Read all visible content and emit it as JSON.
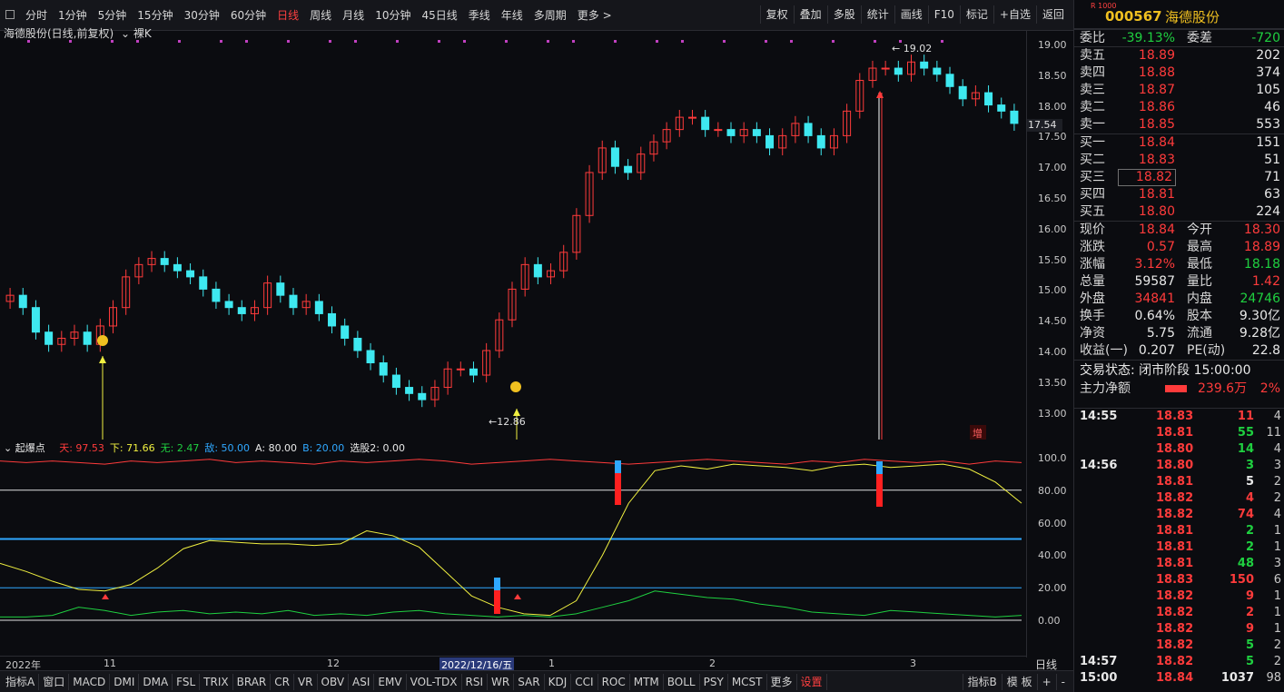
{
  "toolbar": {
    "periods": [
      "分时",
      "1分钟",
      "5分钟",
      "15分钟",
      "30分钟",
      "60分钟",
      "日线",
      "周线",
      "月线",
      "10分钟",
      "45日线",
      "季线",
      "年线",
      "多周期",
      "更多 >"
    ],
    "active_period": "日线",
    "right_tools": [
      "复权",
      "叠加",
      "多股",
      "统计",
      "画线",
      "F10",
      "标记",
      "+自选",
      "返回"
    ]
  },
  "chart": {
    "title": "海德股份(日线,前复权)",
    "mode": "裸K",
    "price_axis": [
      "19.00",
      "18.50",
      "18.00",
      "17.50",
      "17.00",
      "16.50",
      "16.00",
      "15.50",
      "15.00",
      "14.50",
      "14.00",
      "13.50",
      "13.00"
    ],
    "last_price_tag": "17.54",
    "high_annotation": "19.02",
    "low_annotation": "12.86",
    "zeng_badge": "增",
    "colors": {
      "up": "#ff3b3b",
      "down": "#3ee8f0",
      "background": "#0b0c10"
    }
  },
  "indicator": {
    "name": "起爆点",
    "fields": [
      {
        "label": "天: 97.53",
        "color": "#ff3b3b"
      },
      {
        "label": "下: 71.66",
        "color": "#f0f040"
      },
      {
        "label": "无: 2.47",
        "color": "#1fd040"
      },
      {
        "label": "敌: 50.00",
        "color": "#2fa8ff"
      },
      {
        "label": "A: 80.00",
        "color": "#e8e8e8"
      },
      {
        "label": "B: 20.00",
        "color": "#2fa8ff"
      },
      {
        "label": "选股2: 0.00",
        "color": "#e8e8e8"
      }
    ],
    "axis": [
      "100.0",
      "80.00",
      "60.00",
      "40.00",
      "20.00",
      "0.00"
    ]
  },
  "date_axis": {
    "labels": [
      {
        "text": "2022年"
      },
      {
        "text": "11"
      },
      {
        "text": "12"
      },
      {
        "text": "2022/12/16/五"
      },
      {
        "text": "1"
      },
      {
        "text": "2"
      },
      {
        "text": "3"
      }
    ],
    "period": "日线"
  },
  "bottom_tabs": {
    "tabs": [
      "指标A",
      "窗口",
      "MACD",
      "DMI",
      "DMA",
      "FSL",
      "TRIX",
      "BRAR",
      "CR",
      "VR",
      "OBV",
      "ASI",
      "EMV",
      "VOL-TDX",
      "RSI",
      "WR",
      "SAR",
      "KDJ",
      "CCI",
      "ROC",
      "MTM",
      "BOLL",
      "PSY",
      "MCST",
      "更多",
      "设置"
    ],
    "active": "设置",
    "right": [
      "指标B",
      "模 板",
      "+",
      "-"
    ]
  },
  "panel": {
    "rbadge": "R 1000",
    "code": "000567",
    "name": "海德股份",
    "weibi": {
      "label": "委比",
      "value": "-39.13%",
      "label2": "委差",
      "value2": "-720"
    },
    "asks": [
      {
        "label": "卖五",
        "price": "18.89",
        "vol": "202"
      },
      {
        "label": "卖四",
        "price": "18.88",
        "vol": "374"
      },
      {
        "label": "卖三",
        "price": "18.87",
        "vol": "105"
      },
      {
        "label": "卖二",
        "price": "18.86",
        "vol": "46"
      },
      {
        "label": "卖一",
        "price": "18.85",
        "vol": "553"
      }
    ],
    "bids": [
      {
        "label": "买一",
        "price": "18.84",
        "vol": "151"
      },
      {
        "label": "买二",
        "price": "18.83",
        "vol": "51"
      },
      {
        "label": "买三",
        "price": "18.82",
        "vol": "71"
      },
      {
        "label": "买四",
        "price": "18.81",
        "vol": "63"
      },
      {
        "label": "买五",
        "price": "18.80",
        "vol": "224"
      }
    ],
    "stats": [
      {
        "l": "现价",
        "v": "18.84",
        "vc": "red",
        "l2": "今开",
        "v2": "18.30",
        "v2c": "red"
      },
      {
        "l": "涨跌",
        "v": "0.57",
        "vc": "red",
        "l2": "最高",
        "v2": "18.89",
        "v2c": "red"
      },
      {
        "l": "涨幅",
        "v": "3.12%",
        "vc": "red",
        "l2": "最低",
        "v2": "18.18",
        "v2c": "green"
      },
      {
        "l": "总量",
        "v": "59587",
        "vc": "white",
        "l2": "量比",
        "v2": "1.42",
        "v2c": "red"
      },
      {
        "l": "外盘",
        "v": "34841",
        "vc": "red",
        "l2": "内盘",
        "v2": "24746",
        "v2c": "green"
      },
      {
        "l": "换手",
        "v": "0.64%",
        "vc": "white",
        "l2": "股本",
        "v2": "9.30亿",
        "v2c": "white"
      },
      {
        "l": "净资",
        "v": "5.75",
        "vc": "white",
        "l2": "流通",
        "v2": "9.28亿",
        "v2c": "white"
      },
      {
        "l": "收益(一)",
        "v": "0.207",
        "vc": "white",
        "l2": "PE(动)",
        "v2": "22.8",
        "v2c": "white"
      }
    ],
    "trade_state": "交易状态: 闭市阶段 15:00:00",
    "mainforce": {
      "label": "主力净额",
      "value": "239.6万",
      "pct": "2%"
    },
    "ticks": [
      {
        "t": "14:55",
        "p": "18.83",
        "v": "11",
        "vc": "red",
        "c": "4"
      },
      {
        "t": "",
        "p": "18.81",
        "v": "55",
        "vc": "green",
        "c": "11"
      },
      {
        "t": "",
        "p": "18.80",
        "v": "14",
        "vc": "green",
        "c": "4"
      },
      {
        "t": "14:56",
        "p": "18.80",
        "v": "3",
        "vc": "green",
        "c": "3"
      },
      {
        "t": "",
        "p": "18.81",
        "v": "5",
        "vc": "white",
        "c": "2"
      },
      {
        "t": "",
        "p": "18.82",
        "v": "4",
        "vc": "red",
        "c": "2"
      },
      {
        "t": "",
        "p": "18.82",
        "v": "74",
        "vc": "red",
        "c": "4"
      },
      {
        "t": "",
        "p": "18.81",
        "v": "2",
        "vc": "green",
        "c": "1"
      },
      {
        "t": "",
        "p": "18.81",
        "v": "2",
        "vc": "green",
        "c": "1"
      },
      {
        "t": "",
        "p": "18.81",
        "v": "48",
        "vc": "green",
        "c": "3"
      },
      {
        "t": "",
        "p": "18.83",
        "v": "150",
        "vc": "red",
        "c": "6"
      },
      {
        "t": "",
        "p": "18.82",
        "v": "9",
        "vc": "red",
        "c": "1"
      },
      {
        "t": "",
        "p": "18.82",
        "v": "2",
        "vc": "red",
        "c": "1"
      },
      {
        "t": "",
        "p": "18.82",
        "v": "9",
        "vc": "red",
        "c": "1"
      },
      {
        "t": "",
        "p": "18.82",
        "v": "5",
        "vc": "green",
        "c": "2"
      },
      {
        "t": "14:57",
        "p": "18.82",
        "v": "5",
        "vc": "green",
        "c": "2"
      },
      {
        "t": "15:00",
        "p": "18.84",
        "v": "1037",
        "vc": "white",
        "c": "98"
      }
    ]
  }
}
